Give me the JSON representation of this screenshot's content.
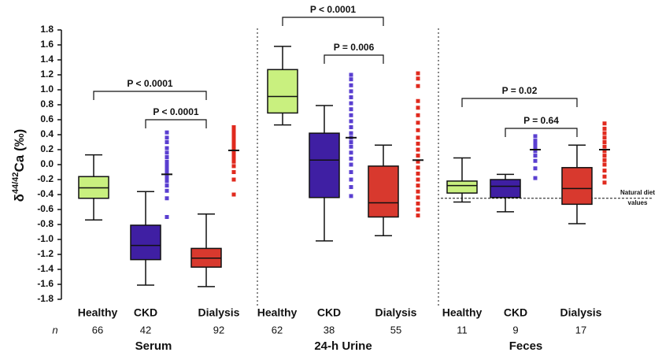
{
  "chart_data": {
    "type": "box",
    "ylabel": [
      "δ",
      "44/42",
      "Ca (‰)"
    ],
    "ylim": [
      -1.8,
      1.8
    ],
    "yticks": [
      1.8,
      1.6,
      1.4,
      1.2,
      {
        "value": 1,
        "label": "1.0"
      },
      0.8,
      0.6,
      0.4,
      0.2,
      {
        "value": 0,
        "label": "0.0"
      },
      -0.2,
      -0.4,
      -0.6,
      -0.8,
      {
        "value": -1,
        "label": "-1.0"
      },
      -1.2,
      -1.4,
      -1.6,
      -1.8
    ],
    "n_label": "n",
    "reference_line": {
      "value": -0.45,
      "label": [
        "Natural diet",
        "values"
      ]
    },
    "groups": [
      {
        "name": "Serum",
        "boxes": [
          {
            "category": "Healthy",
            "n": 66,
            "color": "#c9f07f",
            "min": -0.74,
            "q1": -0.45,
            "median": -0.31,
            "q3": -0.16,
            "max": 0.13
          },
          {
            "category": "CKD",
            "n": 42,
            "color": "#3f1fa3",
            "min": -1.61,
            "q1": -1.27,
            "median": -1.08,
            "q3": -0.81,
            "max": -0.36,
            "points": [
              -0.7,
              -0.45,
              -0.35,
              -0.28,
              -0.22,
              -0.17,
              -0.12,
              -0.08,
              -0.04,
              0.0,
              0.04,
              0.1,
              0.16,
              0.22,
              0.3,
              0.36,
              0.43
            ],
            "points_line": -0.13,
            "points_color": "#5a3fd0"
          },
          {
            "category": "Dialysis",
            "n": 92,
            "color": "#d8392e",
            "min": -1.63,
            "q1": -1.37,
            "median": -1.25,
            "q3": -1.12,
            "max": -0.66,
            "points": [
              -0.4,
              -0.2,
              -0.1,
              -0.02,
              0.04,
              0.08,
              0.12,
              0.16,
              0.2,
              0.24,
              0.28,
              0.32,
              0.36,
              0.4,
              0.45,
              0.5
            ],
            "points_line": 0.19,
            "points_color": "#e02a1e"
          }
        ],
        "brackets": [
          {
            "from": 0,
            "to": 2,
            "label": "P < 0.0001"
          },
          {
            "from": 1,
            "to": 2,
            "label": "P < 0.0001"
          }
        ]
      },
      {
        "name": "24-h Urine",
        "boxes": [
          {
            "category": "Healthy",
            "n": 62,
            "color": "#c9f07f",
            "min": 0.53,
            "q1": 0.69,
            "median": 0.91,
            "q3": 1.27,
            "max": 1.58
          },
          {
            "category": "CKD",
            "n": 38,
            "color": "#3f1fa3",
            "min": -1.02,
            "q1": -0.44,
            "median": 0.06,
            "q3": 0.42,
            "max": 0.79,
            "points": [
              -0.42,
              -0.3,
              -0.2,
              -0.1,
              0.0,
              0.08,
              0.16,
              0.24,
              0.3,
              0.36,
              0.42,
              0.5,
              0.58,
              0.66,
              0.74,
              0.82,
              0.9,
              0.98,
              1.06,
              1.14,
              1.2
            ],
            "points_line": 0.36,
            "points_color": "#5a3fd0"
          },
          {
            "category": "Dialysis",
            "n": 55,
            "color": "#d8392e",
            "min": -0.95,
            "q1": -0.7,
            "median": -0.51,
            "q3": -0.02,
            "max": 0.26,
            "points": [
              -0.68,
              -0.6,
              -0.52,
              -0.44,
              -0.36,
              -0.28,
              -0.2,
              -0.12,
              -0.04,
              0.04,
              0.12,
              0.2,
              0.28,
              0.36,
              0.46,
              0.56,
              0.66,
              0.76,
              0.85,
              1.05,
              1.15,
              1.22
            ],
            "points_line": 0.06,
            "points_color": "#e02a1e"
          }
        ],
        "brackets": [
          {
            "from": 0,
            "to": 2,
            "label": "P < 0.0001"
          },
          {
            "from": 1,
            "to": 2,
            "label": "P = 0.006"
          }
        ]
      },
      {
        "name": "Feces",
        "boxes": [
          {
            "category": "Healthy",
            "n": 11,
            "color": "#c9f07f",
            "min": -0.5,
            "q1": -0.38,
            "median": -0.28,
            "q3": -0.22,
            "max": 0.09
          },
          {
            "category": "CKD",
            "n": 9,
            "color": "#3f1fa3",
            "min": -0.63,
            "q1": -0.44,
            "median": -0.29,
            "q3": -0.2,
            "max": -0.13,
            "points": [
              -0.18,
              -0.05,
              0.05,
              0.12,
              0.18,
              0.22,
              0.27,
              0.32,
              0.38
            ],
            "points_line": 0.2,
            "points_color": "#5a3fd0"
          },
          {
            "category": "Dialysis",
            "n": 17,
            "color": "#d8392e",
            "min": -0.79,
            "q1": -0.53,
            "median": -0.32,
            "q3": -0.04,
            "max": 0.26,
            "points": [
              -0.24,
              -0.16,
              -0.08,
              0.0,
              0.06,
              0.12,
              0.18,
              0.24,
              0.3,
              0.36,
              0.42,
              0.48,
              0.55
            ],
            "points_line": 0.2,
            "points_color": "#e02a1e"
          }
        ],
        "brackets": [
          {
            "from": 0,
            "to": 2,
            "label": "P = 0.02"
          },
          {
            "from": 1,
            "to": 2,
            "label": "P = 0.64"
          }
        ]
      }
    ]
  }
}
